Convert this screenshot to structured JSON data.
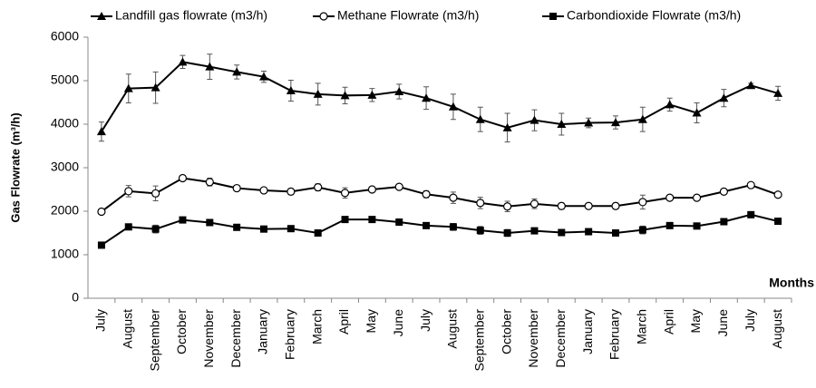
{
  "chart_data": {
    "type": "line",
    "y_label": "Gas Flowrate (m³/h)",
    "x_label": "Months",
    "categories": [
      "July",
      "August",
      "September",
      "October",
      "November",
      "December",
      "January",
      "February",
      "March",
      "April",
      "May",
      "June",
      "July",
      "August",
      "September",
      "October",
      "November",
      "December",
      "January",
      "February",
      "March",
      "April",
      "May",
      "June",
      "July",
      "August"
    ],
    "ylim": [
      0,
      6000
    ],
    "yticks": [
      0,
      1000,
      2000,
      3000,
      4000,
      5000,
      6000
    ],
    "grid": false,
    "series": [
      {
        "name": "Landfill gas flowrate (m3/h)",
        "color": "#000000",
        "marker": "triangle",
        "values": [
          3830,
          4820,
          4840,
          5430,
          5320,
          5200,
          5090,
          4770,
          4690,
          4660,
          4670,
          4750,
          4600,
          4400,
          4110,
          3920,
          4090,
          4000,
          4030,
          4040,
          4110,
          4450,
          4260,
          4600,
          4890,
          4710
        ],
        "errors": [
          220,
          330,
          360,
          150,
          290,
          160,
          130,
          240,
          250,
          190,
          150,
          170,
          260,
          290,
          280,
          330,
          240,
          250,
          110,
          150,
          280,
          150,
          230,
          200,
          50,
          160
        ]
      },
      {
        "name": "Methane Flowrate (m3/h)",
        "color": "#000000",
        "marker": "circle-open",
        "values": [
          1990,
          2460,
          2410,
          2760,
          2670,
          2530,
          2480,
          2450,
          2550,
          2420,
          2500,
          2560,
          2390,
          2310,
          2190,
          2110,
          2170,
          2120,
          2120,
          2120,
          2210,
          2310,
          2310,
          2450,
          2600,
          2380
        ],
        "errors": [
          50,
          130,
          170,
          60,
          90,
          50,
          60,
          70,
          80,
          120,
          60,
          50,
          80,
          130,
          130,
          120,
          110,
          70,
          60,
          70,
          160,
          50,
          60,
          50,
          40,
          40
        ]
      },
      {
        "name": "Carbondioxide Flowrate (m3/h)",
        "color": "#000000",
        "marker": "square",
        "values": [
          1220,
          1640,
          1590,
          1800,
          1740,
          1630,
          1590,
          1600,
          1500,
          1810,
          1810,
          1750,
          1670,
          1640,
          1560,
          1500,
          1550,
          1510,
          1530,
          1500,
          1570,
          1670,
          1660,
          1760,
          1920,
          1770
        ],
        "errors": [
          50,
          60,
          90,
          50,
          50,
          50,
          60,
          50,
          40,
          60,
          60,
          40,
          40,
          80,
          90,
          80,
          60,
          40,
          40,
          50,
          90,
          50,
          50,
          50,
          60,
          50
        ]
      }
    ]
  }
}
